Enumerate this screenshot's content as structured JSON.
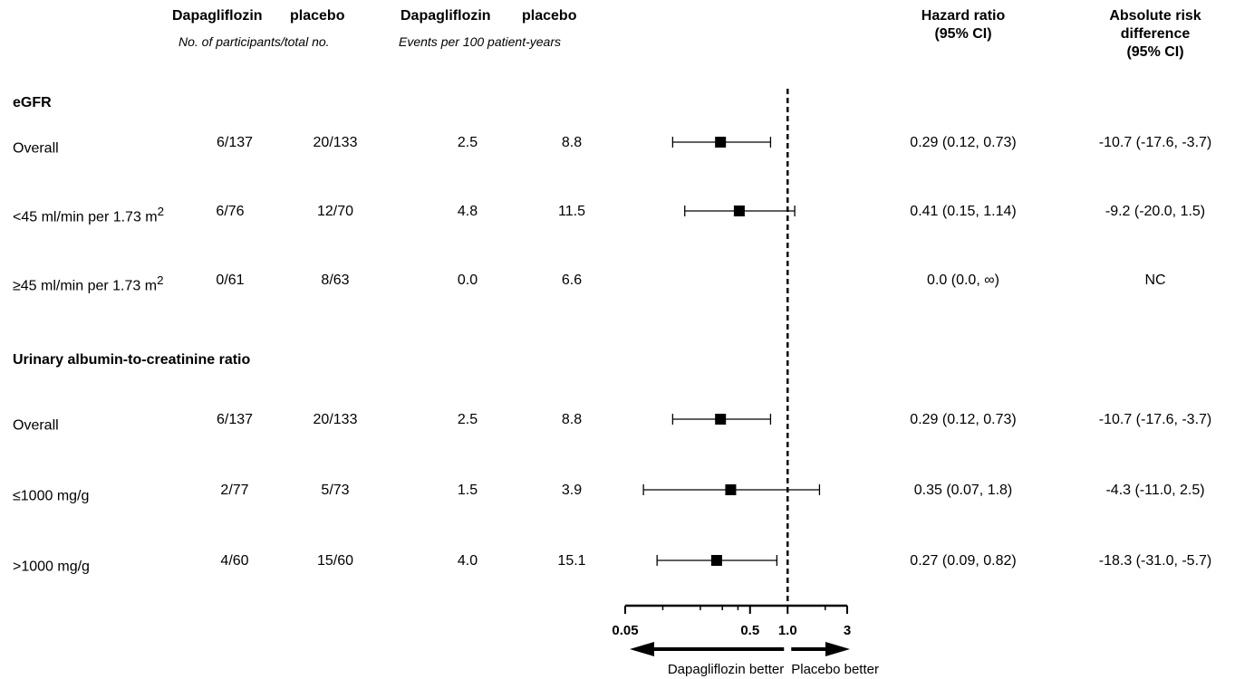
{
  "headers": {
    "dapa_label": "Dapagliflozin",
    "placebo_label": "placebo",
    "participants_sub": "No. of participants/total no.",
    "events_sub": "Events per 100 patient-years",
    "hr_line1": "Hazard ratio",
    "hr_line2": "(95% CI)",
    "ard_line1": "Absolute risk",
    "ard_line2": "difference",
    "ard_line3": "(95% CI)"
  },
  "sections": [
    {
      "title": "eGFR"
    },
    {
      "title": "Urinary albumin-to-creatinine ratio"
    }
  ],
  "rows": [
    {
      "label": "Overall",
      "label_sup": "",
      "dapa_n": "6/137",
      "placebo_n": "20/133",
      "dapa_rate": "2.5",
      "placebo_rate": "8.8",
      "hr_text": "0.29 (0.12, 0.73)",
      "ard_text": "-10.7 (-17.6, -3.7)"
    },
    {
      "label": "<45 ml/min per 1.73 m",
      "label_sup": "2",
      "dapa_n": "6/76",
      "placebo_n": "12/70",
      "dapa_rate": "4.8",
      "placebo_rate": "11.5",
      "hr_text": "0.41 (0.15, 1.14)",
      "ard_text": "-9.2 (-20.0, 1.5)"
    },
    {
      "label": "≥45 ml/min per 1.73 m",
      "label_sup": "2",
      "dapa_n": "0/61",
      "placebo_n": "8/63",
      "dapa_rate": "0.0",
      "placebo_rate": "6.6",
      "hr_text": "0.0  (0.0, ∞)",
      "ard_text": "NC"
    },
    {
      "label": "Overall",
      "label_sup": "",
      "dapa_n": "6/137",
      "placebo_n": "20/133",
      "dapa_rate": "2.5",
      "placebo_rate": "8.8",
      "hr_text": "0.29 (0.12, 0.73)",
      "ard_text": "-10.7 (-17.6, -3.7)"
    },
    {
      "label": "≤1000 mg/g",
      "label_sup": "",
      "dapa_n": "2/77",
      "placebo_n": "5/73",
      "dapa_rate": "1.5",
      "placebo_rate": "3.9",
      "hr_text": "0.35 (0.07, 1.8)",
      "ard_text": "-4.3 (-11.0, 2.5)"
    },
    {
      "label": ">1000 mg/g",
      "label_sup": "",
      "dapa_n": "4/60",
      "placebo_n": "15/60",
      "dapa_rate": "4.0",
      "placebo_rate": "15.1",
      "hr_text": "0.27 (0.09, 0.82)",
      "ard_text": "-18.3 (-31.0, -5.7)"
    }
  ],
  "chart_data": {
    "type": "forest",
    "x_scale": "log",
    "x_range": [
      0.05,
      3
    ],
    "reference_line": 1.0,
    "tick_labels": [
      "0.05",
      "0.5",
      "1.0",
      "3"
    ],
    "tick_values": [
      0.05,
      0.5,
      1.0,
      3
    ],
    "minor_ticks": [
      0.1,
      0.2,
      0.3,
      0.4,
      2
    ],
    "points": [
      {
        "hr": 0.29,
        "lo": 0.12,
        "hi": 0.73
      },
      {
        "hr": 0.41,
        "lo": 0.15,
        "hi": 1.14
      },
      null,
      {
        "hr": 0.29,
        "lo": 0.12,
        "hi": 0.73
      },
      {
        "hr": 0.35,
        "lo": 0.07,
        "hi": 1.8
      },
      {
        "hr": 0.27,
        "lo": 0.09,
        "hi": 0.82
      }
    ],
    "favors_left": "Dapagliflozin better",
    "favors_right": "Placebo better"
  }
}
